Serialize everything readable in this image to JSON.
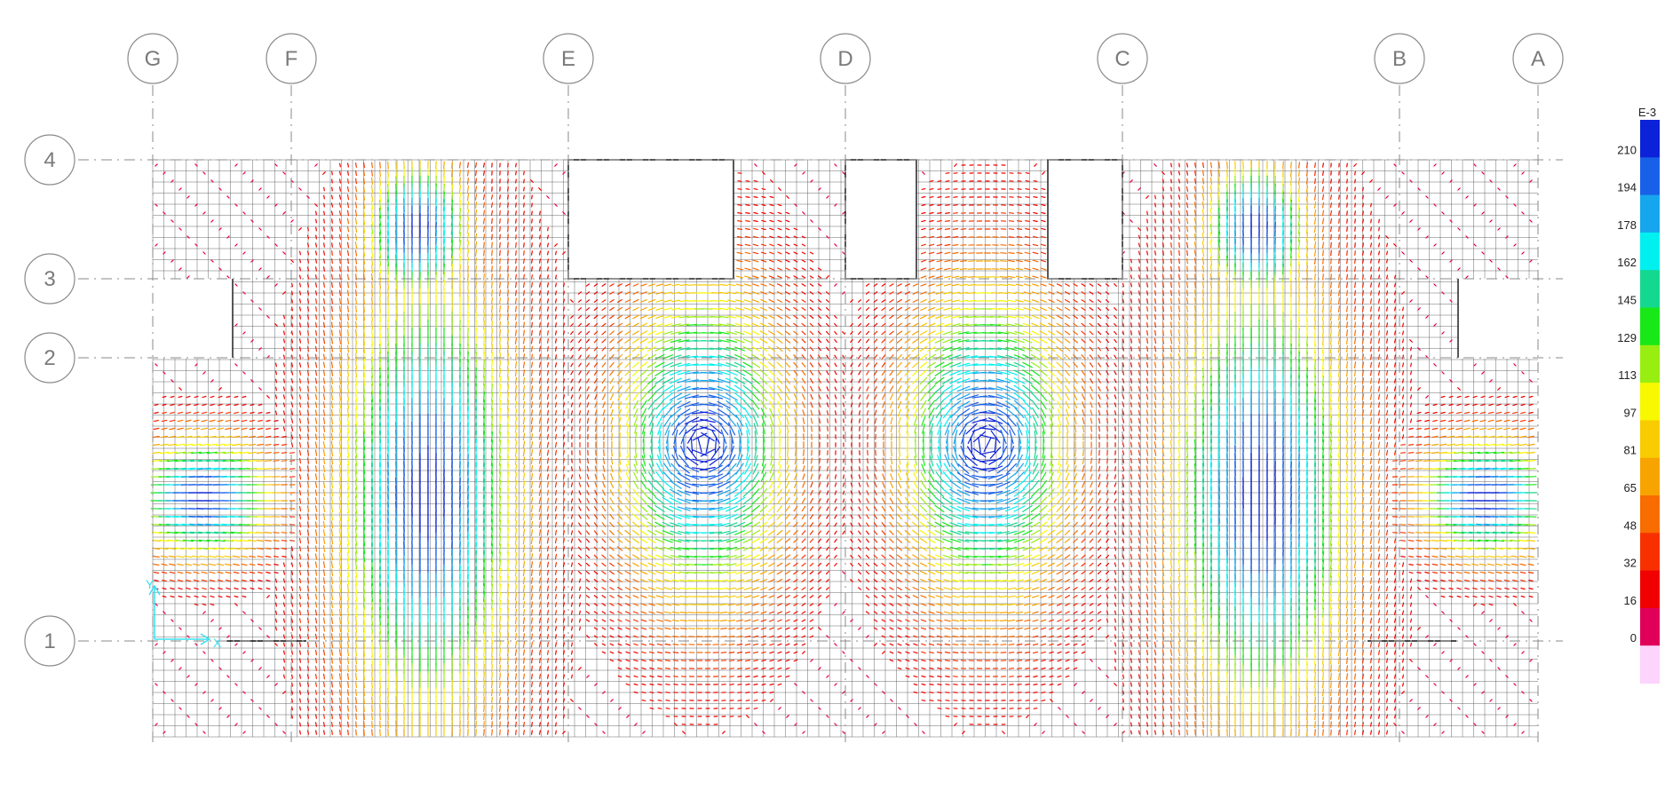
{
  "grid": {
    "columns": [
      "G",
      "F",
      "E",
      "D",
      "C",
      "B",
      "A"
    ],
    "rows": [
      "4",
      "3",
      "2",
      "1"
    ]
  },
  "legend": {
    "unit": "E-3",
    "ticks": [
      "210",
      "194",
      "178",
      "162",
      "145",
      "129",
      "113",
      "97",
      "81",
      "65",
      "48",
      "32",
      "16",
      "0"
    ],
    "colors": [
      "#0b22d8",
      "#1860e8",
      "#16a6ee",
      "#00f0f0",
      "#14d890",
      "#18e818",
      "#98ee10",
      "#f8f800",
      "#f8cc00",
      "#f8a400",
      "#f86c00",
      "#f83000",
      "#f00000",
      "#e0005a",
      "#fcd4fc"
    ]
  },
  "axes_glyph": {
    "y_label": "Y",
    "x_label": "X",
    "color": "#38e0f0"
  }
}
